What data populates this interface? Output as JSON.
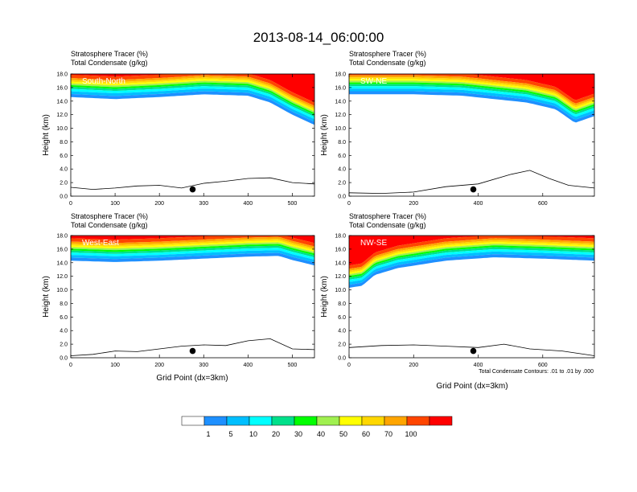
{
  "title": "2013-08-14_06:00:00",
  "panel_labels": {
    "line1": "Stratosphere Tracer   (%)",
    "line2": "Total Condensate   (g/kg)"
  },
  "ylabel": "Height (km)",
  "xlabel": "Grid Point (dx=3km)",
  "contour_note": "Total Condensate Contours: .01 to .01 by .000",
  "colorbar": {
    "colors": [
      "#ffffff",
      "#1e90ff",
      "#00bfff",
      "#00ffff",
      "#00e08a",
      "#00ff00",
      "#a0f050",
      "#ffff00",
      "#ffd700",
      "#ffa500",
      "#ff4500",
      "#ff0000"
    ],
    "labels": [
      "1",
      "5",
      "10",
      "20",
      "30",
      "40",
      "50",
      "60",
      "70",
      "100"
    ]
  },
  "chart_data": [
    {
      "type": "heatmap",
      "name": "South-North",
      "xlim": [
        0,
        550
      ],
      "ylim": [
        0,
        18
      ],
      "xticks": [
        "0",
        "100",
        "200",
        "300",
        "400",
        "500"
      ],
      "yticks": [
        "0.0",
        "2.0",
        "4.0",
        "6.0",
        "8.0",
        "10.0",
        "12.0",
        "14.0",
        "16.0",
        "18.0"
      ],
      "tropopause_km": {
        "x": [
          0,
          100,
          200,
          300,
          400,
          450,
          500,
          550
        ],
        "y": [
          14.6,
          14.3,
          14.6,
          15.0,
          14.8,
          13.8,
          12.0,
          10.5
        ]
      },
      "terrain_km": {
        "x": [
          0,
          50,
          100,
          150,
          200,
          250,
          300,
          350,
          400,
          450,
          500,
          550
        ],
        "y": [
          1.3,
          1.0,
          1.2,
          1.5,
          1.6,
          1.2,
          1.9,
          2.2,
          2.6,
          2.7,
          2.0,
          1.8
        ]
      },
      "marker": {
        "x": 275,
        "y": 1.0
      }
    },
    {
      "type": "heatmap",
      "name": "SW-NE",
      "xlim": [
        0,
        760
      ],
      "ylim": [
        0,
        18
      ],
      "xticks": [
        "0",
        "200",
        "400",
        "600"
      ],
      "yticks": [
        "0.0",
        "2.0",
        "4.0",
        "6.0",
        "8.0",
        "10.0",
        "12.0",
        "14.0",
        "16.0",
        "18.0"
      ],
      "tropopause_km": {
        "x": [
          0,
          200,
          350,
          450,
          550,
          640,
          700,
          760
        ],
        "y": [
          15.0,
          15.0,
          14.8,
          14.3,
          13.8,
          12.8,
          10.8,
          11.8
        ]
      },
      "terrain_km": {
        "x": [
          0,
          100,
          200,
          300,
          400,
          500,
          560,
          620,
          680,
          760
        ],
        "y": [
          0.5,
          0.4,
          0.6,
          1.4,
          1.8,
          3.2,
          3.8,
          2.6,
          1.6,
          1.2
        ]
      },
      "marker": {
        "x": 385,
        "y": 1.0
      }
    },
    {
      "type": "heatmap",
      "name": "West-East",
      "xlim": [
        0,
        550
      ],
      "ylim": [
        0,
        18
      ],
      "xticks": [
        "0",
        "100",
        "200",
        "300",
        "400",
        "500"
      ],
      "yticks": [
        "0.0",
        "2.0",
        "4.0",
        "6.0",
        "8.0",
        "10.0",
        "12.0",
        "14.0",
        "16.0",
        "18.0"
      ],
      "tropopause_km": {
        "x": [
          0,
          100,
          200,
          300,
          400,
          470,
          500,
          550
        ],
        "y": [
          14.3,
          14.1,
          14.3,
          14.6,
          14.9,
          15.0,
          14.4,
          13.6
        ]
      },
      "terrain_km": {
        "x": [
          0,
          50,
          100,
          150,
          200,
          250,
          300,
          350,
          400,
          450,
          500,
          550
        ],
        "y": [
          0.3,
          0.5,
          1.0,
          0.9,
          1.3,
          1.7,
          1.9,
          1.8,
          2.5,
          2.8,
          1.3,
          1.2
        ]
      },
      "marker": {
        "x": 275,
        "y": 1.0
      }
    },
    {
      "type": "heatmap",
      "name": "NW-SE",
      "xlim": [
        0,
        760
      ],
      "ylim": [
        0,
        18
      ],
      "xticks": [
        "0",
        "200",
        "400",
        "600"
      ],
      "yticks": [
        "0.0",
        "2.0",
        "4.0",
        "6.0",
        "8.0",
        "10.0",
        "12.0",
        "14.0",
        "16.0",
        "18.0"
      ],
      "tropopause_km": {
        "x": [
          0,
          40,
          80,
          150,
          300,
          450,
          600,
          760
        ],
        "y": [
          10.3,
          10.6,
          12.2,
          13.2,
          14.3,
          14.8,
          14.6,
          14.3
        ]
      },
      "terrain_km": {
        "x": [
          0,
          100,
          200,
          300,
          400,
          480,
          560,
          660,
          760
        ],
        "y": [
          1.5,
          1.8,
          1.9,
          1.7,
          1.5,
          2.0,
          1.3,
          1.0,
          0.3
        ]
      },
      "marker": {
        "x": 385,
        "y": 1.0
      }
    }
  ]
}
